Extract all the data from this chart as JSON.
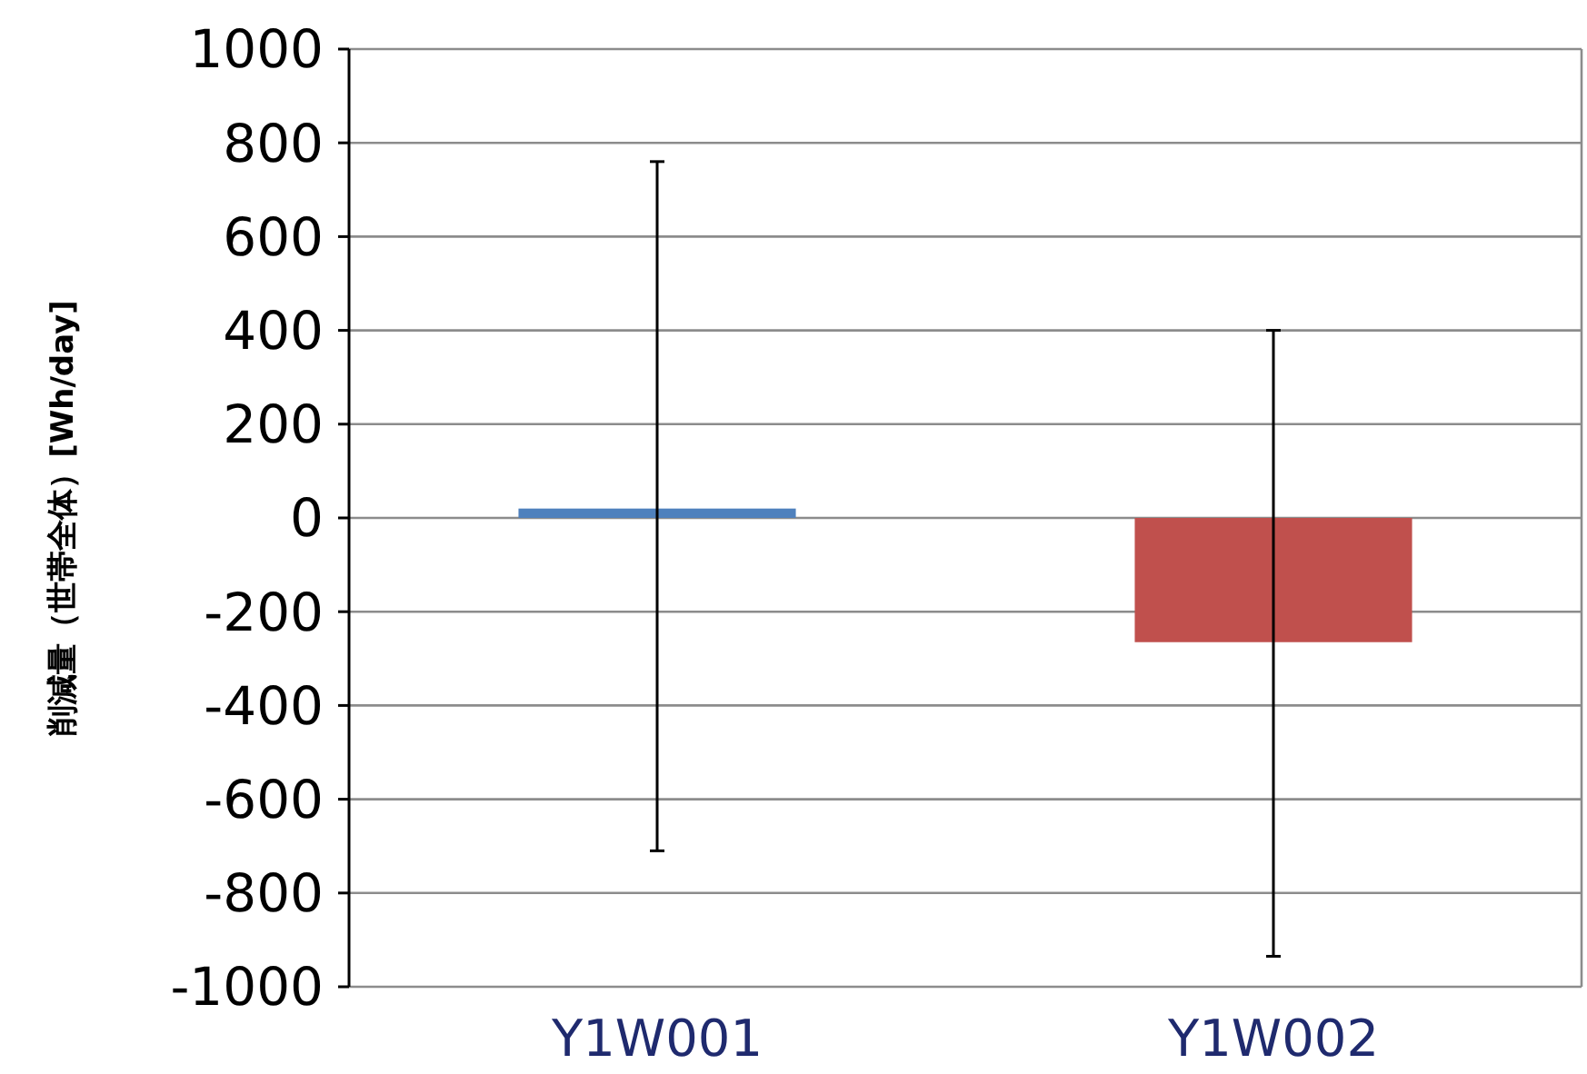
{
  "chart_data": {
    "type": "bar",
    "ylabel": "削減量（世帯全体）[Wh/day]",
    "categories": [
      "Y1W001",
      "Y1W002"
    ],
    "values": [
      20,
      -265
    ],
    "colors": [
      "#4f81bd",
      "#c0504d"
    ],
    "errors": [
      [
        -710,
        760
      ],
      [
        -935,
        400
      ]
    ],
    "ylim": [
      -1000,
      1000
    ],
    "yticks": [
      -1000,
      -800,
      -600,
      -400,
      -200,
      0,
      200,
      400,
      600,
      800,
      1000
    ],
    "grid": "y"
  }
}
